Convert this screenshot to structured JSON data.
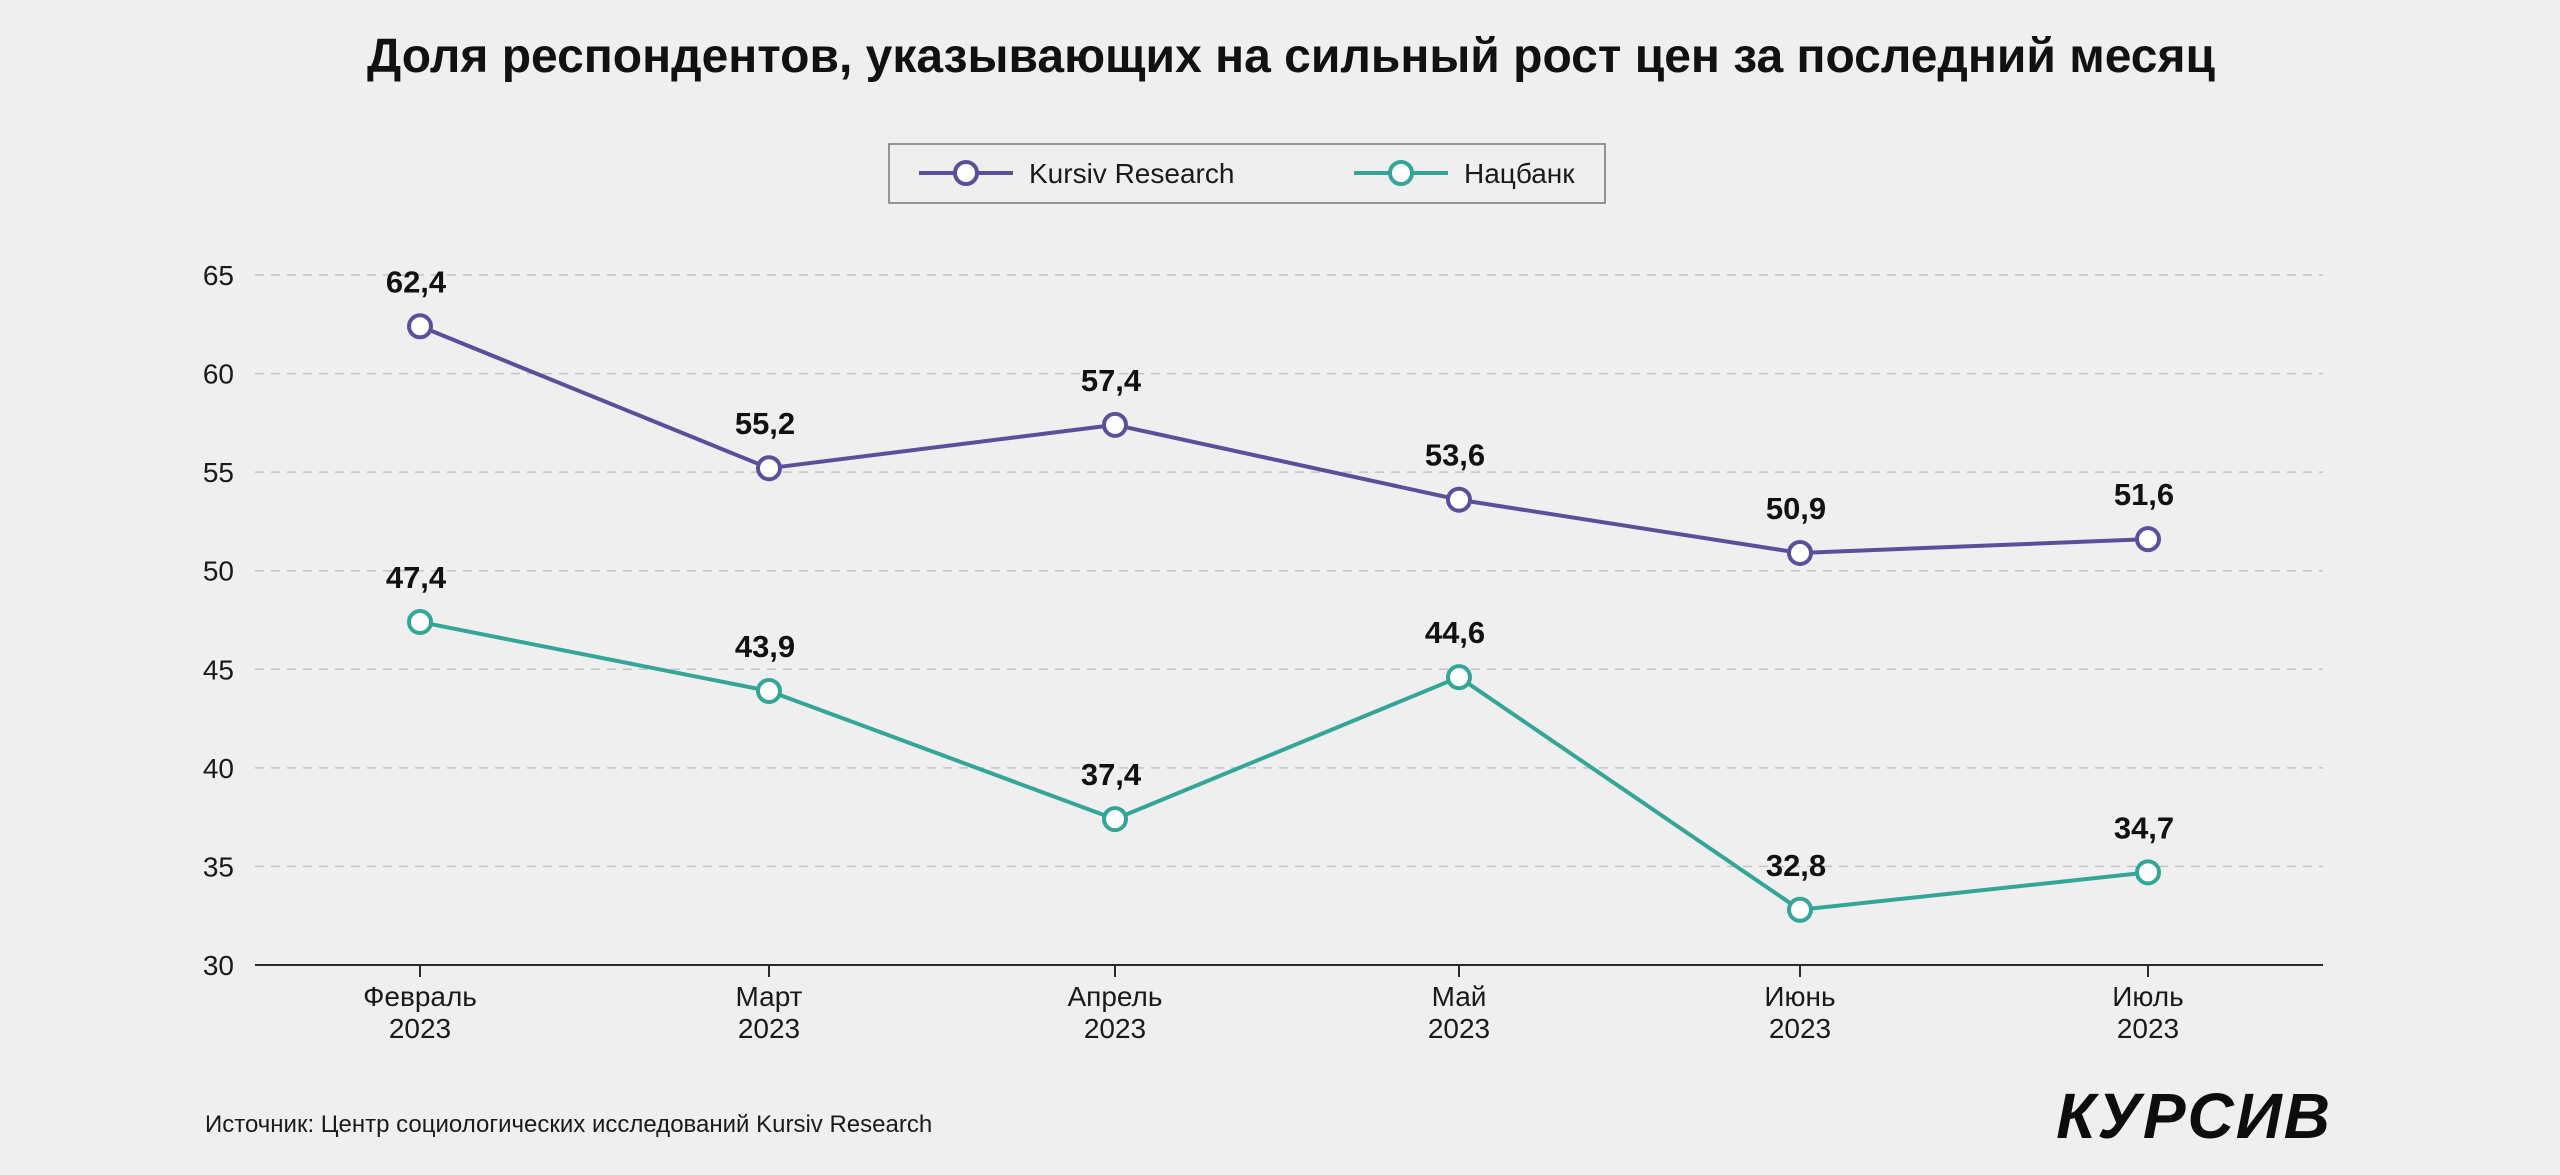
{
  "chart_data": {
    "type": "line",
    "title": "Доля респондентов, указывающих на сильный рост цен за последний месяц",
    "categories": [
      [
        "Февраль",
        "2023"
      ],
      [
        "Март",
        "2023"
      ],
      [
        "Апрель",
        "2023"
      ],
      [
        "Май",
        "2023"
      ],
      [
        "Июнь",
        "2023"
      ],
      [
        "Июль",
        "2023"
      ]
    ],
    "series": [
      {
        "name": "Kursiv Research",
        "color": "#5b4f9c",
        "values": [
          62.4,
          55.2,
          57.4,
          53.6,
          50.9,
          51.6
        ],
        "labels": [
          "62,4",
          "55,2",
          "57,4",
          "53,6",
          "50,9",
          "51,6"
        ]
      },
      {
        "name": "Нацбанк",
        "color": "#34a697",
        "values": [
          47.4,
          43.9,
          37.4,
          44.6,
          32.8,
          34.7
        ],
        "labels": [
          "47,4",
          "43,9",
          "37,4",
          "44,6",
          "32,8",
          "34,7"
        ]
      }
    ],
    "ylim": [
      30,
      65
    ],
    "yticks": [
      30,
      35,
      40,
      45,
      50,
      55,
      60,
      65
    ],
    "xlabel": "",
    "ylabel": "",
    "grid": true,
    "legend_position": "top-center"
  },
  "source_text": "Источник: Центр социологических исследований Kursiv Research",
  "brand": "КУРСИВ"
}
